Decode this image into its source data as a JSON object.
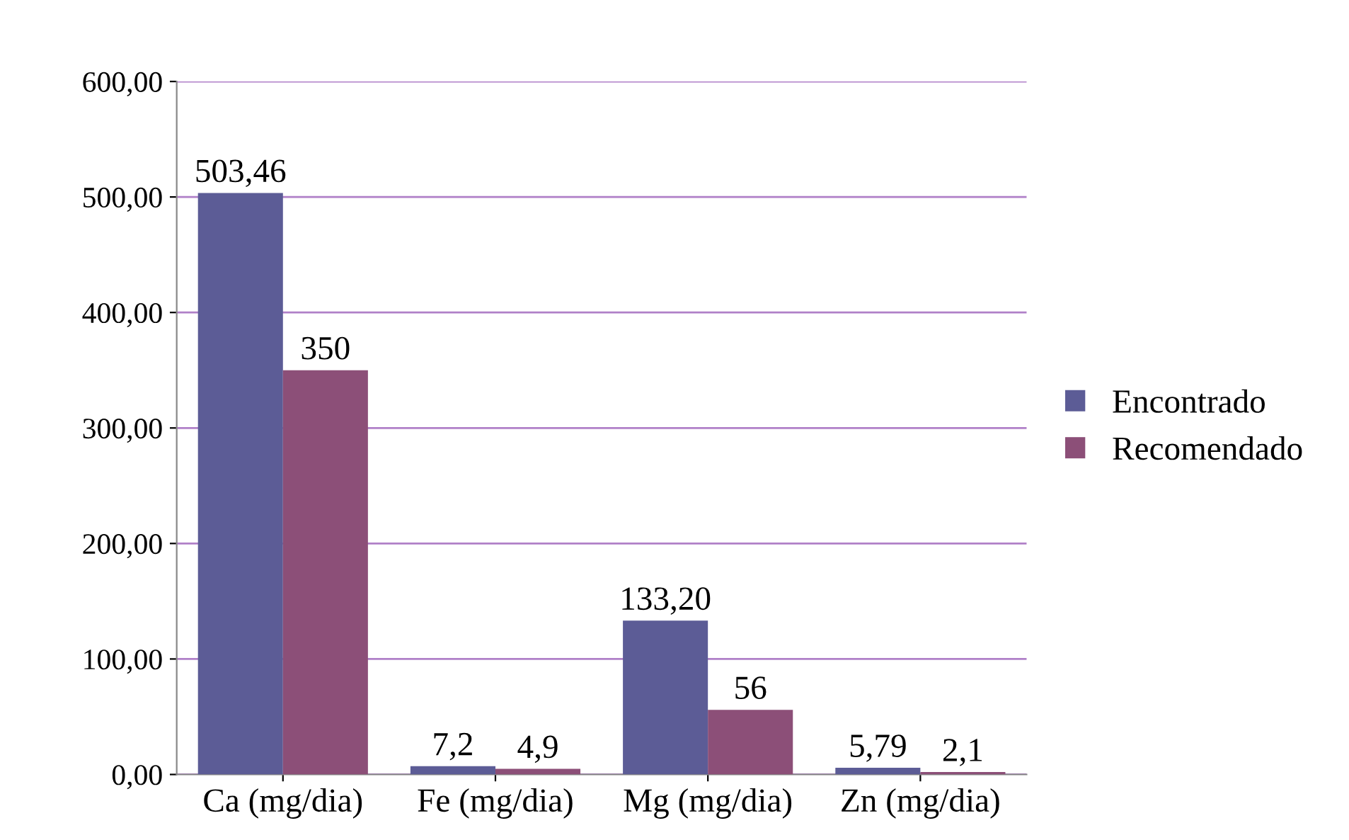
{
  "chart_data": {
    "type": "bar",
    "categories": [
      "Ca (mg/dia)",
      "Fe (mg/dia)",
      "Mg (mg/dia)",
      "Zn (mg/dia)"
    ],
    "series": [
      {
        "name": "Encontrado",
        "color": "#5c5c96",
        "values": [
          503.46,
          7.2,
          133.2,
          5.79
        ],
        "value_labels": [
          "503,46",
          "7,2",
          "133,20",
          "5,79"
        ]
      },
      {
        "name": "Recomendado",
        "color": "#8c4f78",
        "values": [
          350,
          4.9,
          56,
          2.1
        ],
        "value_labels": [
          "350",
          "4,9",
          "56",
          "2,1"
        ]
      }
    ],
    "ylim": [
      0,
      600
    ],
    "yticks": [
      {
        "value": 0,
        "label": "0,00"
      },
      {
        "value": 100,
        "label": "100,00"
      },
      {
        "value": 200,
        "label": "200,00"
      },
      {
        "value": 300,
        "label": "300,00"
      },
      {
        "value": 400,
        "label": "400,00"
      },
      {
        "value": 500,
        "label": "500,00"
      },
      {
        "value": 600,
        "label": "600,00"
      }
    ],
    "grid": "y",
    "legend": "right"
  }
}
